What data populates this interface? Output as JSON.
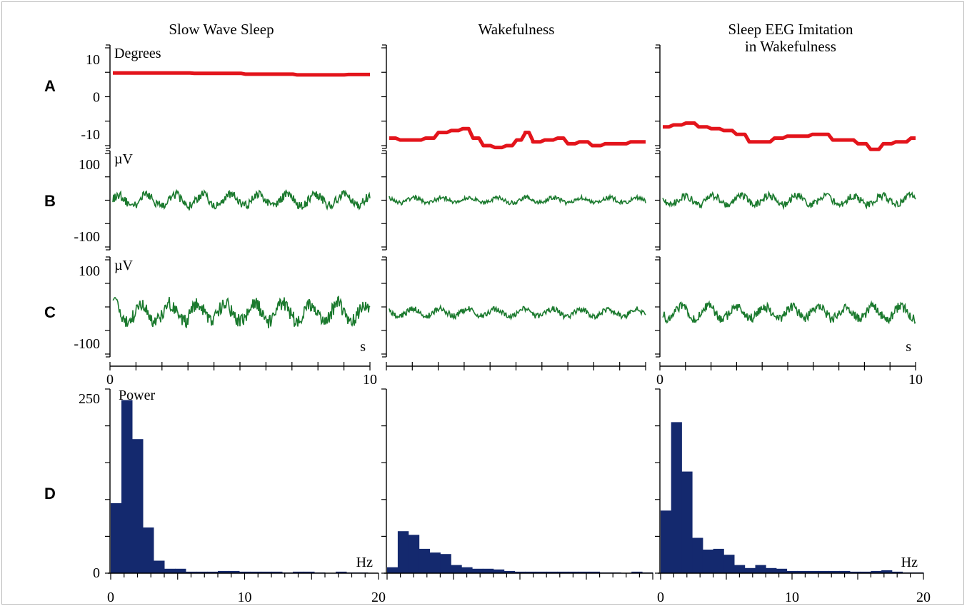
{
  "figure": {
    "columns": [
      "Slow Wave Sleep",
      "Wakefulness",
      "Sleep EEG Imitation\nin Wakefulness"
    ],
    "row_labels": [
      "A",
      "B",
      "C",
      "D"
    ]
  },
  "colors": {
    "angle": "#e3141b",
    "eeg": "#1b7a2e",
    "power": "#14296e",
    "axis": "#000000"
  },
  "chart_data": [
    {
      "type": "line",
      "panel": "A-slow-wave-sleep",
      "row": "A",
      "column": "Slow Wave Sleep",
      "ylabel": "Degrees",
      "ylim": [
        -13,
        13
      ],
      "yticks": [
        10,
        0,
        -10
      ],
      "xlim": [
        0,
        10
      ],
      "series": [
        {
          "x": [
            0,
            2,
            4,
            6,
            8,
            10
          ],
          "values": [
            6.3,
            6.3,
            6.2,
            6.0,
            5.8,
            5.9
          ]
        }
      ]
    },
    {
      "type": "line",
      "panel": "A-wakefulness",
      "row": "A",
      "column": "Wakefulness",
      "ylim": [
        -13,
        13
      ],
      "xlim": [
        0,
        10
      ],
      "series": [
        {
          "x": [
            0,
            0.5,
            1,
            1.5,
            2,
            2.5,
            2.9,
            3.3,
            3.7,
            4.2,
            4.6,
            5.0,
            5.3,
            5.6,
            6.2,
            6.6,
            7.0,
            7.5,
            8.0,
            8.5,
            9.0,
            9.5,
            10
          ],
          "values": [
            -11,
            -11.5,
            -11.5,
            -11,
            -9.5,
            -9,
            -8.5,
            -11,
            -13,
            -13.5,
            -13,
            -11.5,
            -9.5,
            -12,
            -11.5,
            -11,
            -12.5,
            -12,
            -13,
            -12.5,
            -12.5,
            -12,
            -12
          ]
        }
      ]
    },
    {
      "type": "line",
      "panel": "A-sleep-eeg-imitation",
      "row": "A",
      "column": "Sleep EEG Imitation in Wakefulness",
      "ylim": [
        -13,
        13
      ],
      "xlim": [
        0,
        10
      ],
      "series": [
        {
          "x": [
            0,
            0.5,
            1,
            1.5,
            2,
            2.5,
            3,
            3.5,
            4,
            4.5,
            5,
            5.5,
            6,
            6.3,
            6.8,
            7.3,
            7.8,
            8.3,
            8.8,
            9.3,
            10
          ],
          "values": [
            -8,
            -7.5,
            -7,
            -8,
            -8.5,
            -9,
            -10,
            -12,
            -12,
            -11,
            -10.5,
            -10.5,
            -10,
            -10,
            -11.5,
            -11.5,
            -12.5,
            -14,
            -12.5,
            -12,
            -11
          ]
        }
      ]
    },
    {
      "type": "line",
      "panel": "B-slow-wave-sleep",
      "row": "B",
      "column": "Slow Wave Sleep",
      "ylabel": "µV",
      "ylim": [
        -130,
        130
      ],
      "yticks": [
        100,
        -100
      ],
      "xlim": [
        0,
        10
      ],
      "series": [
        {
          "amplitude": 28
        }
      ]
    },
    {
      "type": "line",
      "panel": "B-wakefulness",
      "row": "B",
      "column": "Wakefulness",
      "ylim": [
        -130,
        130
      ],
      "xlim": [
        0,
        10
      ],
      "series": [
        {
          "amplitude": 13
        }
      ]
    },
    {
      "type": "line",
      "panel": "B-sleep-eeg-imitation",
      "row": "B",
      "column": "Sleep EEG Imitation in Wakefulness",
      "ylim": [
        -130,
        130
      ],
      "xlim": [
        0,
        10
      ],
      "series": [
        {
          "amplitude": 22
        }
      ]
    },
    {
      "type": "line",
      "panel": "C-slow-wave-sleep",
      "row": "C",
      "column": "Slow Wave Sleep",
      "ylabel": "µV",
      "ylim": [
        -130,
        130
      ],
      "yticks": [
        100,
        -100
      ],
      "xlim": [
        0,
        10
      ],
      "xticks": [
        0,
        10
      ],
      "xunit": "s",
      "series": [
        {
          "amplitude": 45
        }
      ]
    },
    {
      "type": "line",
      "panel": "C-wakefulness",
      "row": "C",
      "column": "Wakefulness",
      "ylim": [
        -130,
        130
      ],
      "xlim": [
        0,
        10
      ],
      "series": [
        {
          "amplitude": 18
        }
      ]
    },
    {
      "type": "line",
      "panel": "C-sleep-eeg-imitation",
      "row": "C",
      "column": "Sleep EEG Imitation in Wakefulness",
      "ylim": [
        -130,
        130
      ],
      "xlim": [
        0,
        10
      ],
      "xticks": [
        0,
        10
      ],
      "xunit": "s",
      "series": [
        {
          "amplitude": 30
        }
      ]
    },
    {
      "type": "bar",
      "panel": "D-slow-wave-sleep",
      "row": "D",
      "column": "Slow Wave Sleep",
      "ylabel": "Power",
      "xunit": "Hz",
      "ylim": [
        0,
        250
      ],
      "yticks": [
        250,
        0
      ],
      "xlim": [
        0,
        20
      ],
      "xticks": [
        0,
        10,
        20
      ],
      "bin_width": 0.8,
      "values": [
        95,
        235,
        182,
        62,
        17,
        6,
        6,
        2,
        2,
        2,
        3,
        3,
        2,
        2,
        2,
        2,
        1,
        2,
        2,
        1,
        0,
        2,
        1,
        1,
        0
      ]
    },
    {
      "type": "bar",
      "panel": "D-wakefulness",
      "row": "D",
      "column": "Wakefulness",
      "ylim": [
        0,
        250
      ],
      "xlim": [
        0,
        20
      ],
      "bin_width": 0.8,
      "values": [
        8,
        57,
        52,
        33,
        28,
        26,
        11,
        8,
        6,
        6,
        5,
        3,
        2,
        2,
        2,
        2,
        2,
        2,
        2,
        2,
        1,
        1,
        0,
        2,
        1
      ]
    },
    {
      "type": "bar",
      "panel": "D-sleep-eeg-imitation",
      "row": "D",
      "column": "Sleep EEG Imitation in Wakefulness",
      "xunit": "Hz",
      "ylim": [
        0,
        250
      ],
      "xlim": [
        0,
        20
      ],
      "xticks": [
        0,
        10,
        20
      ],
      "bin_width": 0.8,
      "values": [
        85,
        205,
        138,
        48,
        32,
        33,
        25,
        11,
        7,
        11,
        7,
        6,
        3,
        3,
        3,
        3,
        3,
        3,
        2,
        2,
        3,
        4,
        2,
        1,
        1
      ]
    }
  ]
}
